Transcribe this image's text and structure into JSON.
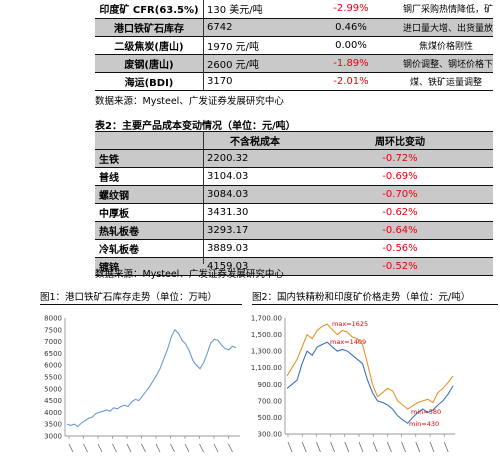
{
  "table1": {
    "rows": [
      {
        "name": "印度矿 CFR(63.5%)",
        "value": "130 美元/吨",
        "change": "-2.99%",
        "change_color": "red",
        "note": "钢厂采购热情降低，矿山降价",
        "shaded": false
      },
      {
        "name": "港口铁矿石库存",
        "value": "6742",
        "change": "0.46%",
        "change_color": "black",
        "note": "进口量大增、出货量放缓",
        "shaded": true
      },
      {
        "name": "二级焦炭(唐山)",
        "value": "1970 元/吨",
        "change": "0.00%",
        "change_color": "black",
        "note": "焦煤价格刚性",
        "shaded": false
      },
      {
        "name": "废钢(唐山)",
        "value": "2600 元/吨",
        "change": "-1.89%",
        "change_color": "red",
        "note": "钢价调整、钢坯价格下跌",
        "shaded": true
      },
      {
        "name": "海运(BDI)",
        "value": "3170",
        "change": "-2.01%",
        "change_color": "red",
        "note": "煤、铁矿运量调整",
        "shaded": false
      }
    ],
    "source": "数据来源：Mysteel、广发证券发展研究中心"
  },
  "table2": {
    "title": "表2：主要产品成本变动情况（单位：元/吨）",
    "headers": [
      "",
      "不含税成本",
      "周环比变动"
    ],
    "rows": [
      {
        "name": "生铁",
        "cost": "2200.32",
        "change": "-0.72%",
        "shaded": true
      },
      {
        "name": "普线",
        "cost": "3104.03",
        "change": "-0.69%",
        "shaded": false
      },
      {
        "name": "螺纹钢",
        "cost": "3084.03",
        "change": "-0.70%",
        "shaded": true
      },
      {
        "name": "中厚板",
        "cost": "3431.30",
        "change": "-0.62%",
        "shaded": false
      },
      {
        "name": "热轧板卷",
        "cost": "3293.17",
        "change": "-0.64%",
        "shaded": true
      },
      {
        "name": "冷轧板卷",
        "cost": "3889.03",
        "change": "-0.56%",
        "shaded": false
      },
      {
        "name": "镀锌",
        "cost": "4159.03",
        "change": "-0.52%",
        "shaded": true
      }
    ],
    "source": "数据来源：Mysteel、广发证券发展研究中心"
  },
  "figure1": {
    "title": "图1：港口铁矿石库存走势（单位：万吨）",
    "line_color": "#6b9bd2",
    "chart_data": {
      "type": "line",
      "yticks": [
        "8000",
        "7500",
        "7000",
        "6500",
        "6000",
        "5500",
        "5000",
        "4500",
        "4000",
        "3500",
        "3000"
      ],
      "ylim": [
        3000,
        8000
      ],
      "series": [
        {
          "values": [
            3500,
            3450,
            3500,
            3400,
            3550,
            3650,
            3750,
            3800,
            3950,
            4000,
            4050,
            4100,
            4050,
            4200,
            4150,
            4250,
            4300,
            4250,
            4450,
            4550,
            4500,
            4700,
            4900,
            5100,
            5350,
            5600,
            5900,
            6300,
            6700,
            7200,
            7500,
            7350,
            7050,
            6900,
            6600,
            6200,
            6000,
            5850,
            6100,
            6500,
            6950,
            7100,
            7050,
            6850,
            6700,
            6650,
            6800,
            6750
          ]
        }
      ]
    }
  },
  "figure2": {
    "title": "图2：国内铁精粉和印度矿价格走势（单位：元/吨）",
    "chart_data": {
      "type": "line",
      "yticks": [
        "1,700.00",
        "1,500.00",
        "1,300.00",
        "1,100.00",
        "900.00",
        "700.00",
        "500.00",
        "300.00"
      ],
      "ylim": [
        300,
        1700
      ],
      "series": [
        {
          "color": "#e8922a",
          "values": [
            1000,
            1100,
            1200,
            1350,
            1500,
            1450,
            1550,
            1600,
            1625,
            1560,
            1500,
            1550,
            1530,
            1470,
            1450,
            1380,
            1150,
            900,
            750,
            800,
            850,
            820,
            700,
            650,
            600,
            640,
            680,
            700,
            720,
            680,
            800,
            850,
            920,
            1000
          ]
        },
        {
          "color": "#3a6fc4",
          "values": [
            850,
            900,
            950,
            1150,
            1300,
            1250,
            1350,
            1380,
            1409,
            1350,
            1300,
            1320,
            1300,
            1250,
            1200,
            1150,
            950,
            800,
            700,
            680,
            650,
            600,
            520,
            470,
            430,
            500,
            560,
            600,
            560,
            590,
            650,
            700,
            780,
            880
          ]
        }
      ],
      "annotations": [
        "max=1625",
        "max=1409",
        "min=580",
        "min=430"
      ]
    }
  }
}
